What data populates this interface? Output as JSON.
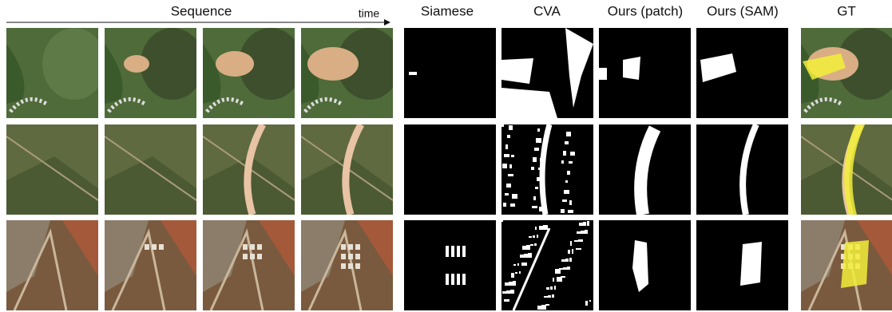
{
  "header": {
    "sequence_label": "Sequence",
    "time_label": "time",
    "columns": [
      "Siamese",
      "CVA",
      "Ours (patch)",
      "Ours (SAM)",
      "GT"
    ]
  }
}
